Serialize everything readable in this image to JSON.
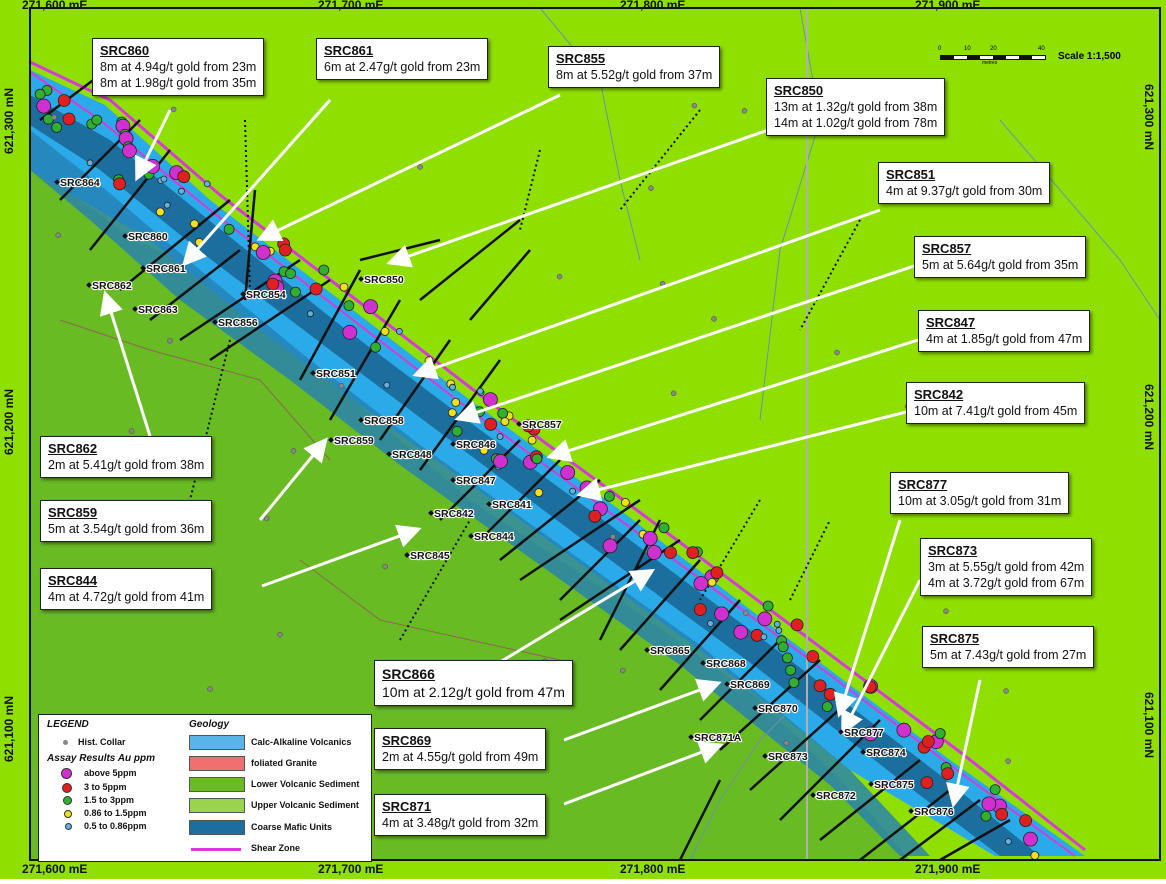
{
  "map": {
    "scale_text": "Scale 1:1,500",
    "scale_ticks": [
      "0",
      "10",
      "20",
      "40"
    ],
    "scale_unit": "metres",
    "easting_labels": [
      "271,600 mE",
      "271,700 mE",
      "271,800 mE",
      "271,900 mE"
    ],
    "northing_labels": [
      "621,300 mN",
      "621,200 mN",
      "621,100 mN"
    ],
    "colors": {
      "upper_volcanic_sediment": "#8fe000",
      "lower_volcanic_sediment": "#68bb22",
      "calc_alkaline_volcanics": "#2aaae8",
      "coarse_mafic_units": "#1c6e9e",
      "shear_zone": "#d83ad8",
      "foliated_granite": "#f07070"
    }
  },
  "hole_labels": [
    "SRC864",
    "SRC860",
    "SRC861",
    "SRC862",
    "SRC863",
    "SRC854",
    "SRC856",
    "SRC850",
    "SRC851",
    "SRC858",
    "SRC859",
    "SRC848",
    "SRC846",
    "SRC857",
    "SRC847",
    "SRC841",
    "SRC842",
    "SRC844",
    "SRC845",
    "SRC865",
    "SRC868",
    "SRC869",
    "SRC870",
    "SRC871A",
    "SRC873",
    "SRC877",
    "SRC874",
    "SRC872",
    "SRC875",
    "SRC876"
  ],
  "callouts": [
    {
      "hole": "SRC860",
      "lines": [
        "8m at 4.94g/t gold from 23m",
        "8m at 1.98g/t gold from 35m"
      ]
    },
    {
      "hole": "SRC861",
      "lines": [
        "6m at 2.47g/t gold from 23m"
      ]
    },
    {
      "hole": "SRC855",
      "lines": [
        "8m at 5.52g/t gold from 37m"
      ]
    },
    {
      "hole": "SRC850",
      "lines": [
        "13m at 1.32g/t gold from 38m",
        "14m at 1.02g/t gold from 78m"
      ]
    },
    {
      "hole": "SRC851",
      "lines": [
        "4m at 9.37g/t gold from 30m"
      ]
    },
    {
      "hole": "SRC857",
      "lines": [
        "5m at 5.64g/t gold from 35m"
      ]
    },
    {
      "hole": "SRC847",
      "lines": [
        "4m at 1.85g/t gold from 47m"
      ]
    },
    {
      "hole": "SRC842",
      "lines": [
        "10m at 7.41g/t gold from 45m"
      ]
    },
    {
      "hole": "SRC862",
      "lines": [
        "2m at 5.41g/t gold from 38m"
      ]
    },
    {
      "hole": "SRC859",
      "lines": [
        "5m at 3.54g/t gold from 36m"
      ]
    },
    {
      "hole": "SRC844",
      "lines": [
        "4m at 4.72g/t gold from 41m"
      ]
    },
    {
      "hole": "SRC877",
      "lines": [
        "10m at 3.05g/t gold from 31m"
      ]
    },
    {
      "hole": "SRC873",
      "lines": [
        "3m at 5.55g/t gold from 42m",
        "4m at 3.72g/t gold from 67m"
      ]
    },
    {
      "hole": "SRC875",
      "lines": [
        "5m at 7.43g/t gold from 27m"
      ]
    },
    {
      "hole": "SRC866",
      "lines": [
        "10m at 2.12g/t gold from 47m"
      ]
    },
    {
      "hole": "SRC869",
      "lines": [
        "2m at 4.55g/t gold from 49m"
      ]
    },
    {
      "hole": "SRC871",
      "lines": [
        "4m at 3.48g/t gold from 32m"
      ]
    }
  ],
  "legend": {
    "title": "LEGEND",
    "hist_collar": "Hist. Collar",
    "assay_title": "Assay Results Au ppm",
    "assay_items": [
      {
        "label": "above 5ppm",
        "color": "#d030d0"
      },
      {
        "label": "3 to 5ppm",
        "color": "#e02020"
      },
      {
        "label": "1.5 to 3ppm",
        "color": "#30b030"
      },
      {
        "label": "0.86 to 1.5ppm",
        "color": "#f0e020"
      },
      {
        "label": "0.5 to 0.86ppm",
        "color": "#60b0e0"
      }
    ],
    "geology_title": "Geology",
    "geology_items": [
      {
        "label": "Calc-Alkaline Volcanics",
        "color": "#5ab4e8"
      },
      {
        "label": "foliated Granite",
        "color": "#f07070"
      },
      {
        "label": "Lower Volcanic Sediment",
        "color": "#68bb22"
      },
      {
        "label": "Upper Volcanic Sediment",
        "color": "#9ad44a"
      },
      {
        "label": "Coarse Mafic Units",
        "color": "#1c6e9e"
      }
    ],
    "shear_zone": "Shear Zone"
  }
}
